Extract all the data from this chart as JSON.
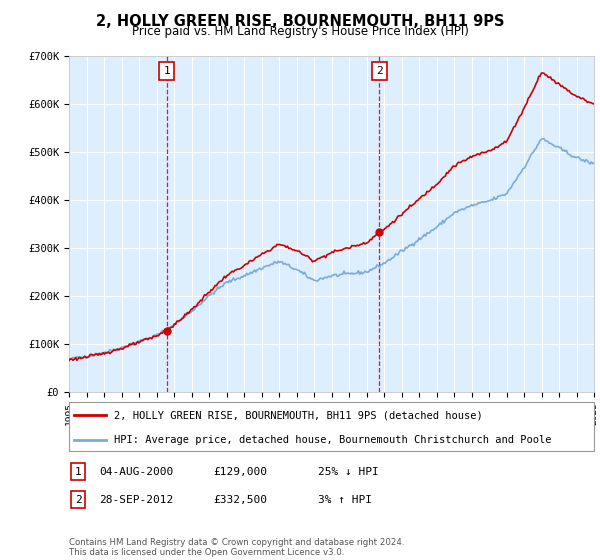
{
  "title": "2, HOLLY GREEN RISE, BOURNEMOUTH, BH11 9PS",
  "subtitle": "Price paid vs. HM Land Registry's House Price Index (HPI)",
  "legend_line1": "2, HOLLY GREEN RISE, BOURNEMOUTH, BH11 9PS (detached house)",
  "legend_line2": "HPI: Average price, detached house, Bournemouth Christchurch and Poole",
  "annotation1_date": "04-AUG-2000",
  "annotation1_price": "£129,000",
  "annotation1_hpi": "25% ↓ HPI",
  "annotation2_date": "28-SEP-2012",
  "annotation2_price": "£332,500",
  "annotation2_hpi": "3% ↑ HPI",
  "footer": "Contains HM Land Registry data © Crown copyright and database right 2024.\nThis data is licensed under the Open Government Licence v3.0.",
  "sale1_year": 2000.58,
  "sale1_price": 129000,
  "sale2_year": 2012.74,
  "sale2_price": 332500,
  "ylim": [
    0,
    700000
  ],
  "xlim_start": 1995,
  "xlim_end": 2025,
  "price_line_color": "#cc0000",
  "hpi_line_color": "#7aabdb",
  "background_color": "#ddeeff",
  "grid_color": "#ffffff",
  "sale_marker_color": "#cc0000",
  "dashed_line_color": "#cc0000",
  "years_hpi": [
    1995,
    1996,
    1997,
    1998,
    1999,
    2000,
    2001,
    2002,
    2003,
    2004,
    2005,
    2006,
    2007,
    2008,
    2009,
    2010,
    2011,
    2012,
    2013,
    2014,
    2015,
    2016,
    2017,
    2018,
    2019,
    2020,
    2021,
    2022,
    2023,
    2024,
    2025
  ],
  "hpi_values": [
    68000,
    74000,
    82000,
    92000,
    105000,
    118000,
    140000,
    168000,
    200000,
    228000,
    242000,
    258000,
    272000,
    255000,
    232000,
    242000,
    246000,
    250000,
    268000,
    293000,
    318000,
    343000,
    373000,
    388000,
    398000,
    413000,
    468000,
    528000,
    508000,
    488000,
    475000
  ]
}
